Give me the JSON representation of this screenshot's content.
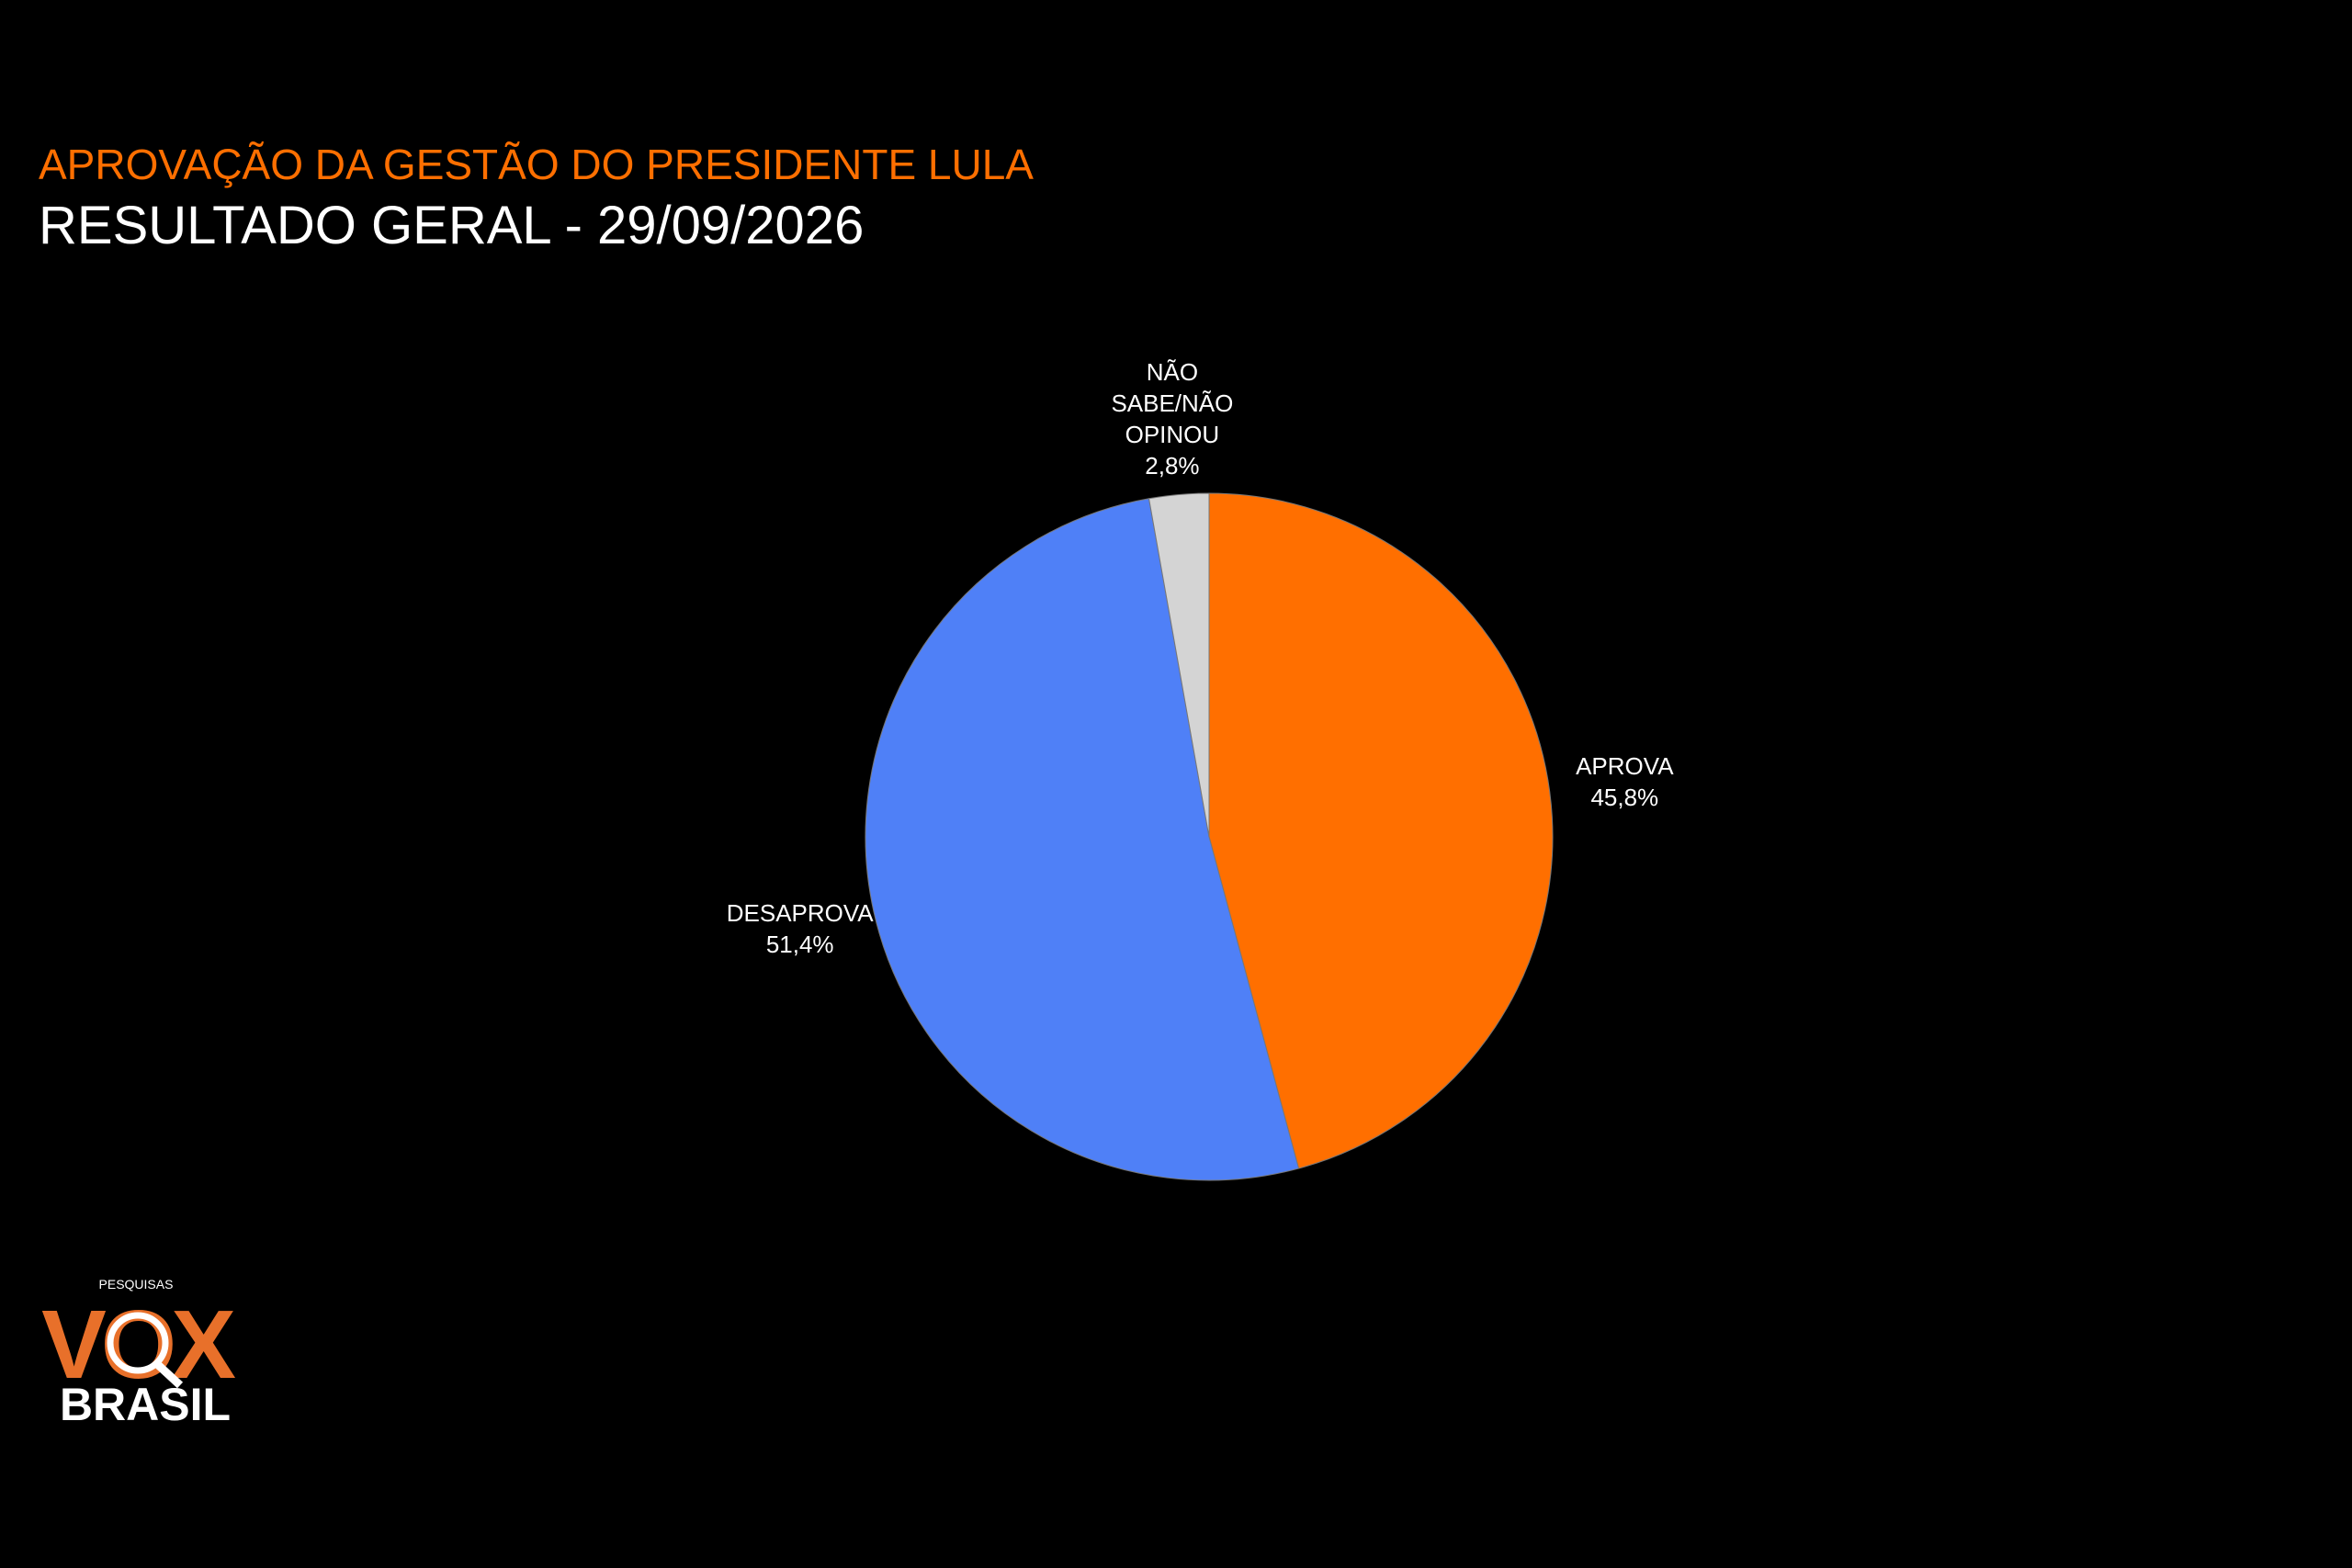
{
  "chart_data": {
    "type": "pie",
    "title": "APROVAÇÃO DA GESTÃO DO PRESIDENTE LULA",
    "subtitle": "RESULTADO GERAL - 29/09/2026",
    "categories": [
      "APROVA",
      "DESAPROVA",
      "NÃO SABE/NÃO OPINOU"
    ],
    "values": [
      45.8,
      51.4,
      2.8
    ],
    "value_labels": [
      "45,8%",
      "51,4%",
      "2,8%"
    ],
    "colors": [
      "#ff6f00",
      "#4f80f7",
      "#d4d4d4"
    ]
  },
  "logo": {
    "top": "PESQUISAS",
    "main": "VOX",
    "bottom": "BRASIL"
  }
}
